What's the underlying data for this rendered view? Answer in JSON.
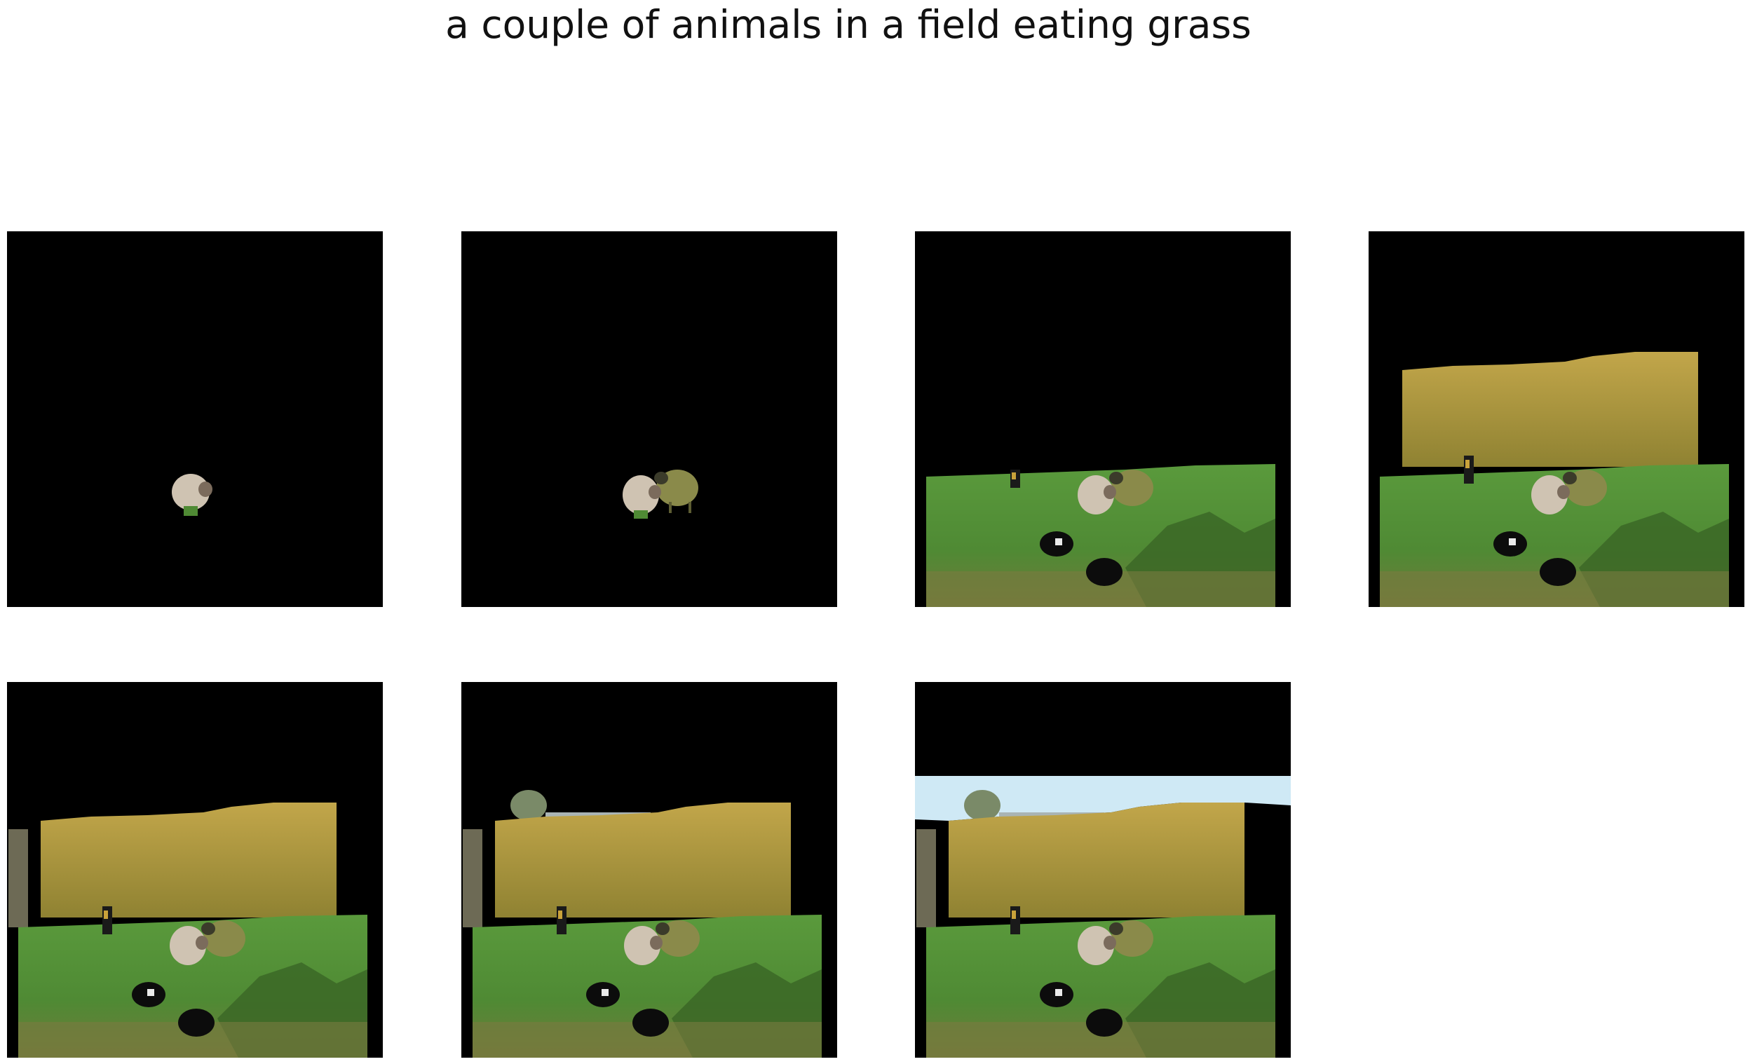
{
  "title": "a couple of animals in a field eating grass",
  "panels": [
    {
      "step": 1,
      "segments": [
        "sheep-white"
      ]
    },
    {
      "step": 2,
      "segments": [
        "sheep-white",
        "sheep-green"
      ]
    },
    {
      "step": 3,
      "segments": [
        "sheep-white",
        "sheep-green",
        "grass-field",
        "lambs",
        "bird"
      ]
    },
    {
      "step": 4,
      "segments": [
        "sheep-white",
        "sheep-green",
        "grass-field",
        "lambs",
        "bird",
        "bushes"
      ]
    },
    {
      "step": 5,
      "segments": [
        "sheep-white",
        "sheep-green",
        "grass-field",
        "lambs",
        "bird",
        "bushes",
        "post"
      ]
    },
    {
      "step": 6,
      "segments": [
        "sheep-white",
        "sheep-green",
        "grass-field",
        "lambs",
        "bird",
        "bushes",
        "post",
        "trees-far"
      ]
    },
    {
      "step": 7,
      "segments": [
        "sheep-white",
        "sheep-green",
        "grass-field",
        "lambs",
        "bird",
        "bushes",
        "post",
        "trees-far",
        "sky"
      ]
    }
  ],
  "colors": {
    "background": "#000000",
    "grass": "#4f8a34",
    "grass_dark": "#3a6526",
    "bushes": "#b39a3c",
    "sky": "#cfe9f5",
    "sheep_white": "#cfc3b2",
    "sheep_green": "#8a8a4a"
  }
}
